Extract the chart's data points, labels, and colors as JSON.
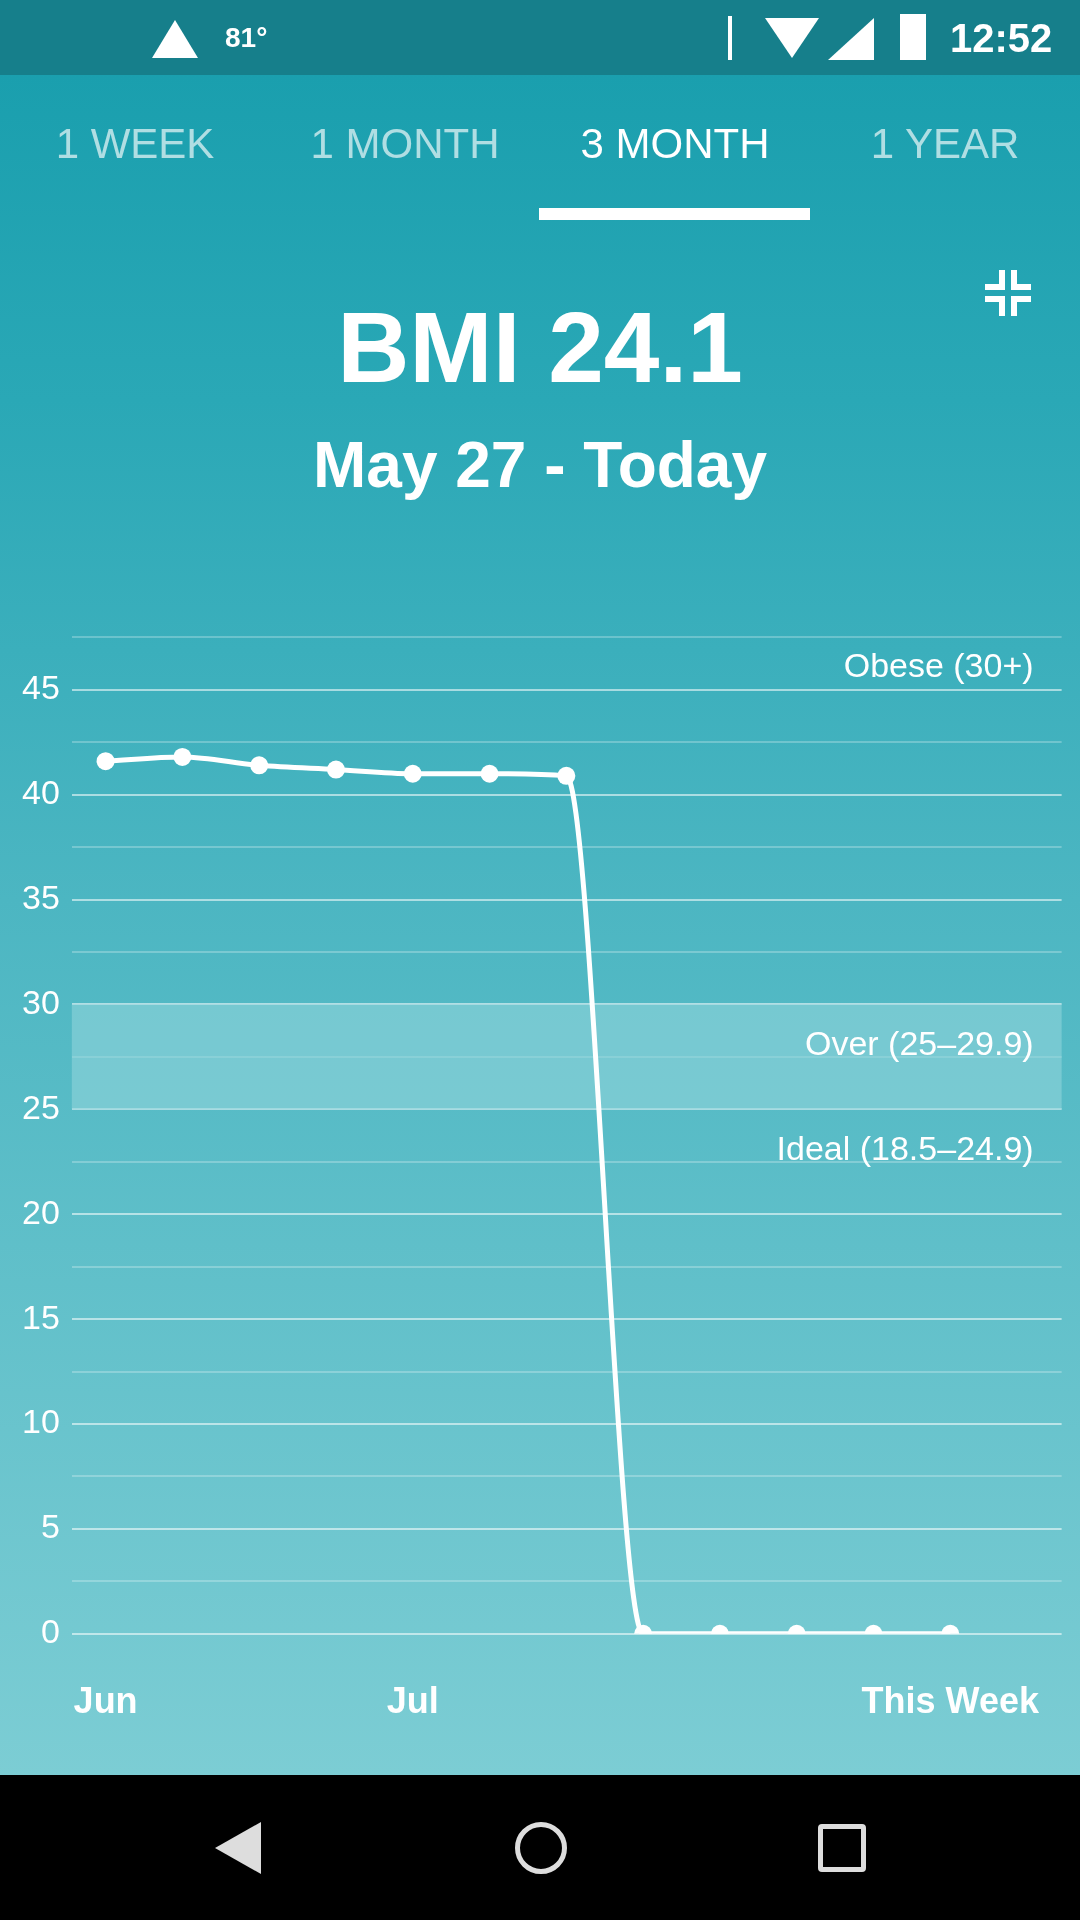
{
  "chart_data": {
    "type": "line",
    "title": "BMI 24.1",
    "subtitle": "May 27 - Today",
    "annotations": [
      "1 WEEK",
      "1 MONTH",
      "3 MONTH",
      "1 YEAR",
      "81°",
      "12:52",
      "Obese (30+)",
      "Ideal (18.5–24.9)"
    ],
    "categories": [
      "Jun",
      null,
      null,
      null,
      "Jul",
      null,
      null,
      null,
      null,
      null,
      null,
      "This Week"
    ],
    "series": [
      {
        "color": "#ffffff",
        "values": [
          41.6,
          41.8,
          41.4,
          41.2,
          41.0,
          41.0,
          40.9,
          0,
          0,
          0,
          0,
          0
        ]
      }
    ],
    "ylim": [
      0,
      47.5
    ],
    "yticks": [
      0,
      {
        "value": 2.5,
        "label": null
      },
      5,
      {
        "value": 7.5,
        "label": null
      },
      10,
      {
        "value": 12.5,
        "label": null
      },
      15,
      {
        "value": 17.5,
        "label": null
      },
      20,
      {
        "value": 22.5,
        "label": null
      },
      25,
      {
        "value": 27.5,
        "label": null
      },
      30,
      {
        "value": 32.5,
        "label": null
      },
      35,
      {
        "value": 37.5,
        "label": null
      },
      40,
      {
        "value": 42.5,
        "label": null
      },
      45,
      {
        "value": 47.5,
        "label": null
      }
    ],
    "bands": [
      {
        "axis": "y",
        "from": 25,
        "to": 30,
        "label": "Over (25–29.9)",
        "color": "#8fd3da"
      }
    ],
    "grid": "y",
    "legend": false,
    "marker": "circle",
    "line_style": "solid"
  }
}
